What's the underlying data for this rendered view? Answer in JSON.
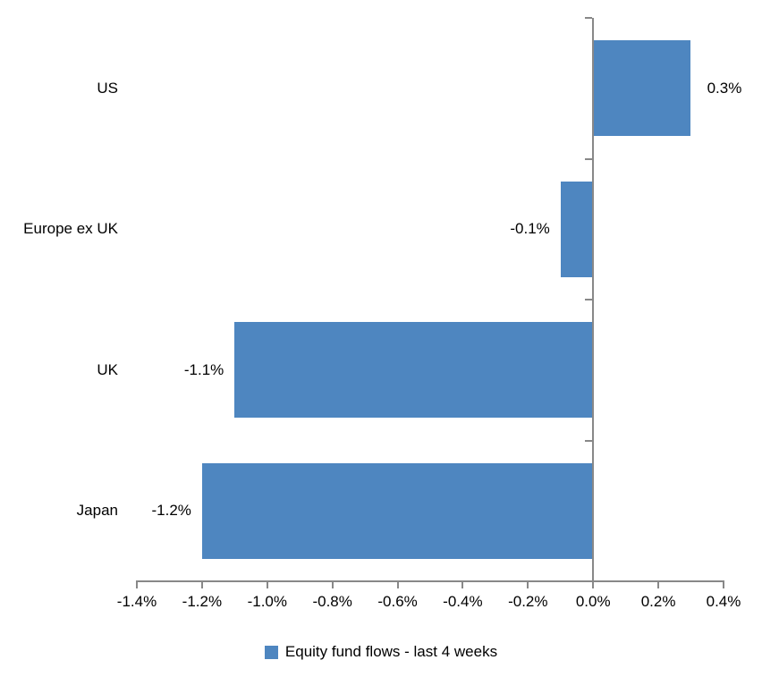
{
  "chart_data": {
    "type": "bar",
    "orientation": "horizontal",
    "title": "",
    "categories": [
      "US",
      "Europe ex UK",
      "UK",
      "Japan"
    ],
    "values": [
      0.3,
      -0.1,
      -1.1,
      -1.2
    ],
    "value_labels": [
      "0.3%",
      "-0.1%",
      "-1.1%",
      "-1.2%"
    ],
    "series": [
      {
        "name": "Equity fund flows - last 4 weeks",
        "values": [
          0.3,
          -0.1,
          -1.1,
          -1.2
        ]
      }
    ],
    "xlabel": "",
    "ylabel": "",
    "xlim": [
      -1.4,
      0.4
    ],
    "x_ticks": [
      -1.4,
      -1.2,
      -1.0,
      -0.8,
      -0.6,
      -0.4,
      -0.2,
      0.0,
      0.2,
      0.4
    ],
    "x_tick_labels": [
      "-1.4%",
      "-1.2%",
      "-1.0%",
      "-0.8%",
      "-0.6%",
      "-0.4%",
      "-0.2%",
      "0.0%",
      "0.2%",
      "0.4%"
    ],
    "grid": false,
    "legend_position": "bottom",
    "colors": {
      "bar": "#4E86C0",
      "axis": "#888888",
      "text": "#000000",
      "background": "#FFFFFF"
    }
  },
  "legend": {
    "label": "Equity fund flows - last 4 weeks",
    "swatch_color": "#4E86C0"
  }
}
